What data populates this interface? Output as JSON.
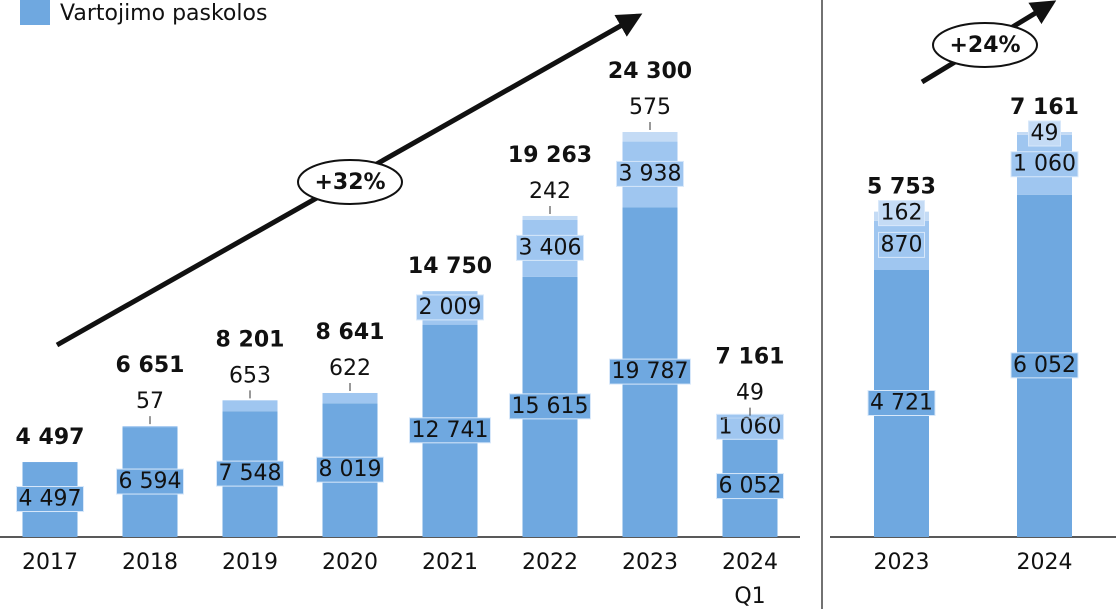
{
  "chart_data": [
    {
      "type": "stacked_bar",
      "categories": [
        "2017",
        "2018",
        "2019",
        "2020",
        "2021",
        "2022",
        "2023",
        "2024 Q1"
      ],
      "series": [
        {
          "name": "Vartojimo paskolos",
          "color": "#6fa8e0",
          "values": [
            4497,
            6594,
            7548,
            8019,
            12741,
            15615,
            19787,
            6052
          ],
          "value_labels": [
            "4 497",
            "6 594",
            "7 548",
            "8 019",
            "12 741",
            "15 615",
            "19 787",
            "6 052"
          ]
        },
        {
          "color": "#9fc6f0",
          "values": [
            null,
            57,
            653,
            622,
            2009,
            3406,
            3938,
            1060
          ],
          "value_labels": [
            null,
            "57",
            "653",
            "622",
            "2 009",
            "3 406",
            "3 938",
            "1 060"
          ]
        },
        {
          "color": "#c4dbf5",
          "values": [
            null,
            null,
            null,
            null,
            null,
            242,
            575,
            49
          ],
          "value_labels": [
            null,
            null,
            null,
            null,
            null,
            "242",
            "575",
            "49"
          ]
        }
      ],
      "totals": [
        4497,
        6651,
        8201,
        8641,
        14750,
        19263,
        24300,
        7161
      ],
      "total_labels": [
        "4 497",
        "6 651",
        "8 201",
        "8 641",
        "14 750",
        "19 263",
        "24 300",
        "7 161"
      ],
      "annotation": "+32%"
    },
    {
      "type": "stacked_bar",
      "categories": [
        "2023",
        "2024"
      ],
      "series": [
        {
          "color": "#6fa8e0",
          "values": [
            4721,
            6052
          ],
          "value_labels": [
            "4 721",
            "6 052"
          ]
        },
        {
          "color": "#9fc6f0",
          "values": [
            870,
            1060
          ],
          "value_labels": [
            "870",
            "1 060"
          ]
        },
        {
          "color": "#c4dbf5",
          "values": [
            162,
            49
          ],
          "value_labels": [
            "162",
            "49"
          ]
        }
      ],
      "totals": [
        5753,
        7161
      ],
      "total_labels": [
        "5 753",
        "7 161"
      ],
      "annotation": "+24%"
    }
  ]
}
